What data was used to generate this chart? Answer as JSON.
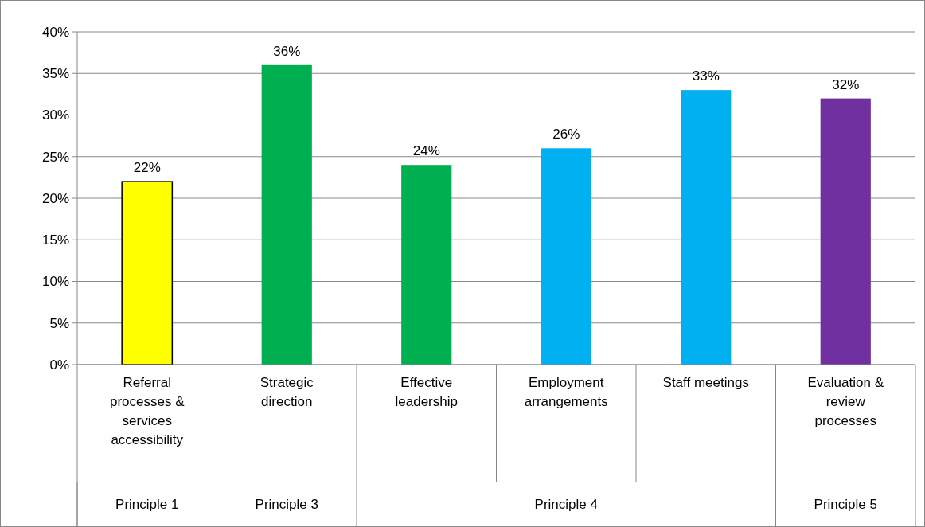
{
  "chart_data": {
    "type": "bar",
    "categories": [
      "Referral processes & services accessibility",
      "Strategic direction",
      "Effective leadership",
      "Employment arrangements",
      "Staff meetings",
      "Evaluation & review processes"
    ],
    "values": [
      22,
      36,
      24,
      26,
      33,
      32
    ],
    "colors": [
      "#ffff00",
      "#00b050",
      "#00b050",
      "#00b0f0",
      "#00b0f0",
      "#7030a0"
    ],
    "value_labels": [
      "22%",
      "36%",
      "24%",
      "26%",
      "33%",
      "32%"
    ],
    "ylim": [
      0,
      40
    ],
    "yticks": [
      {
        "value": 0,
        "label": "0%"
      },
      {
        "value": 5,
        "label": "5%"
      },
      {
        "value": 10,
        "label": "10%"
      },
      {
        "value": 15,
        "label": "15%"
      },
      {
        "value": 20,
        "label": "20%"
      },
      {
        "value": 25,
        "label": "25%"
      },
      {
        "value": 30,
        "label": "30%"
      },
      {
        "value": 35,
        "label": "35%"
      },
      {
        "value": 40,
        "label": "40%"
      }
    ],
    "grid": "y",
    "annotations": [
      "Principle 1",
      "Principle 3",
      "Principle 4",
      "Principle 5"
    ]
  }
}
